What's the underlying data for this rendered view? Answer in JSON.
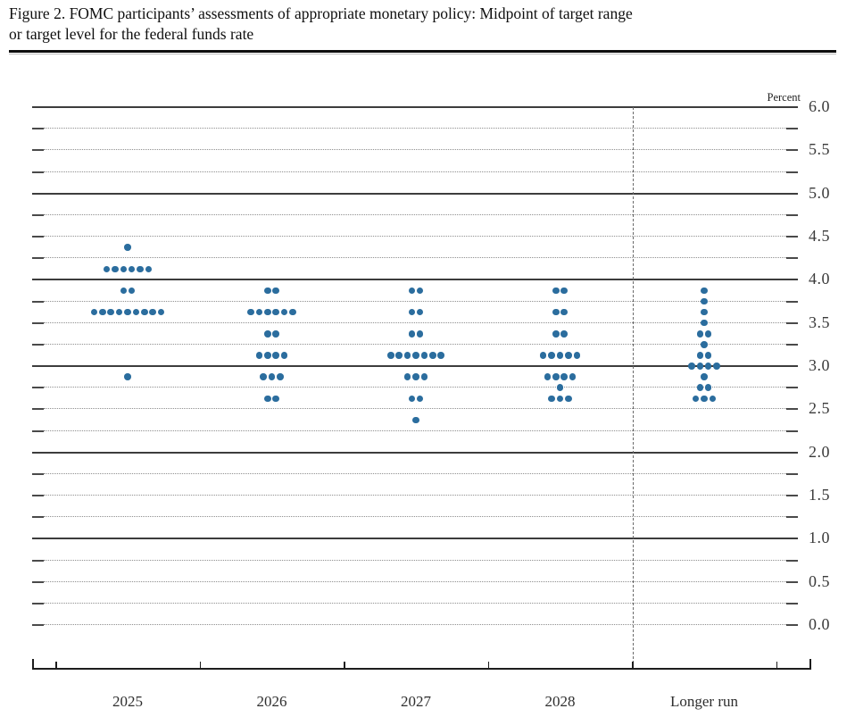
{
  "header": {
    "line1": "Figure 2. FOMC participants’ assessments of appropriate monetary policy: Midpoint of target range",
    "line2": "or target level for the federal funds rate"
  },
  "chart_data": {
    "type": "scatter",
    "subtype": "fomc-dot-plot",
    "title": "Figure 2. FOMC participants’ assessments of appropriate monetary policy: Midpoint of target range or target level for the federal funds rate",
    "ylabel": "Percent",
    "ylim": [
      0.0,
      6.0
    ],
    "y_grid_step": 0.25,
    "y_label_step": 0.5,
    "y_tick_labels": [
      "6.0",
      "5.5",
      "5.0",
      "4.5",
      "4.0",
      "3.5",
      "3.0",
      "2.5",
      "2.0",
      "1.5",
      "1.0",
      "0.5",
      "0.0"
    ],
    "grid": true,
    "solid_lines_at": [
      1.0,
      2.0,
      3.0,
      4.0,
      5.0,
      6.0
    ],
    "dashed_separator_before_category": "Longer run",
    "categories": [
      "2025",
      "2026",
      "2027",
      "2028",
      "Longer run"
    ],
    "dot_color": "#2b6d9e",
    "series": [
      {
        "name": "2025",
        "dots": [
          {
            "rate": 4.375,
            "count": 1
          },
          {
            "rate": 4.125,
            "count": 6
          },
          {
            "rate": 3.875,
            "count": 2
          },
          {
            "rate": 3.625,
            "count": 9
          },
          {
            "rate": 2.875,
            "count": 1
          }
        ]
      },
      {
        "name": "2026",
        "dots": [
          {
            "rate": 3.875,
            "count": 2
          },
          {
            "rate": 3.625,
            "count": 6
          },
          {
            "rate": 3.375,
            "count": 2
          },
          {
            "rate": 3.125,
            "count": 4
          },
          {
            "rate": 2.875,
            "count": 3
          },
          {
            "rate": 2.625,
            "count": 2
          }
        ]
      },
      {
        "name": "2027",
        "dots": [
          {
            "rate": 3.875,
            "count": 2
          },
          {
            "rate": 3.625,
            "count": 2
          },
          {
            "rate": 3.375,
            "count": 2
          },
          {
            "rate": 3.125,
            "count": 7
          },
          {
            "rate": 2.875,
            "count": 3
          },
          {
            "rate": 2.625,
            "count": 2
          },
          {
            "rate": 2.375,
            "count": 1
          }
        ]
      },
      {
        "name": "2028",
        "dots": [
          {
            "rate": 3.875,
            "count": 2
          },
          {
            "rate": 3.625,
            "count": 2
          },
          {
            "rate": 3.375,
            "count": 2
          },
          {
            "rate": 3.125,
            "count": 5
          },
          {
            "rate": 2.875,
            "count": 4
          },
          {
            "rate": 2.75,
            "count": 1
          },
          {
            "rate": 2.625,
            "count": 3
          }
        ]
      },
      {
        "name": "Longer run",
        "dots": [
          {
            "rate": 3.875,
            "count": 1
          },
          {
            "rate": 3.75,
            "count": 1
          },
          {
            "rate": 3.625,
            "count": 1
          },
          {
            "rate": 3.5,
            "count": 1
          },
          {
            "rate": 3.375,
            "count": 2
          },
          {
            "rate": 3.25,
            "count": 1
          },
          {
            "rate": 3.125,
            "count": 2
          },
          {
            "rate": 3.0,
            "count": 4
          },
          {
            "rate": 2.875,
            "count": 1
          },
          {
            "rate": 2.75,
            "count": 2
          },
          {
            "rate": 2.625,
            "count": 3
          }
        ]
      }
    ]
  }
}
